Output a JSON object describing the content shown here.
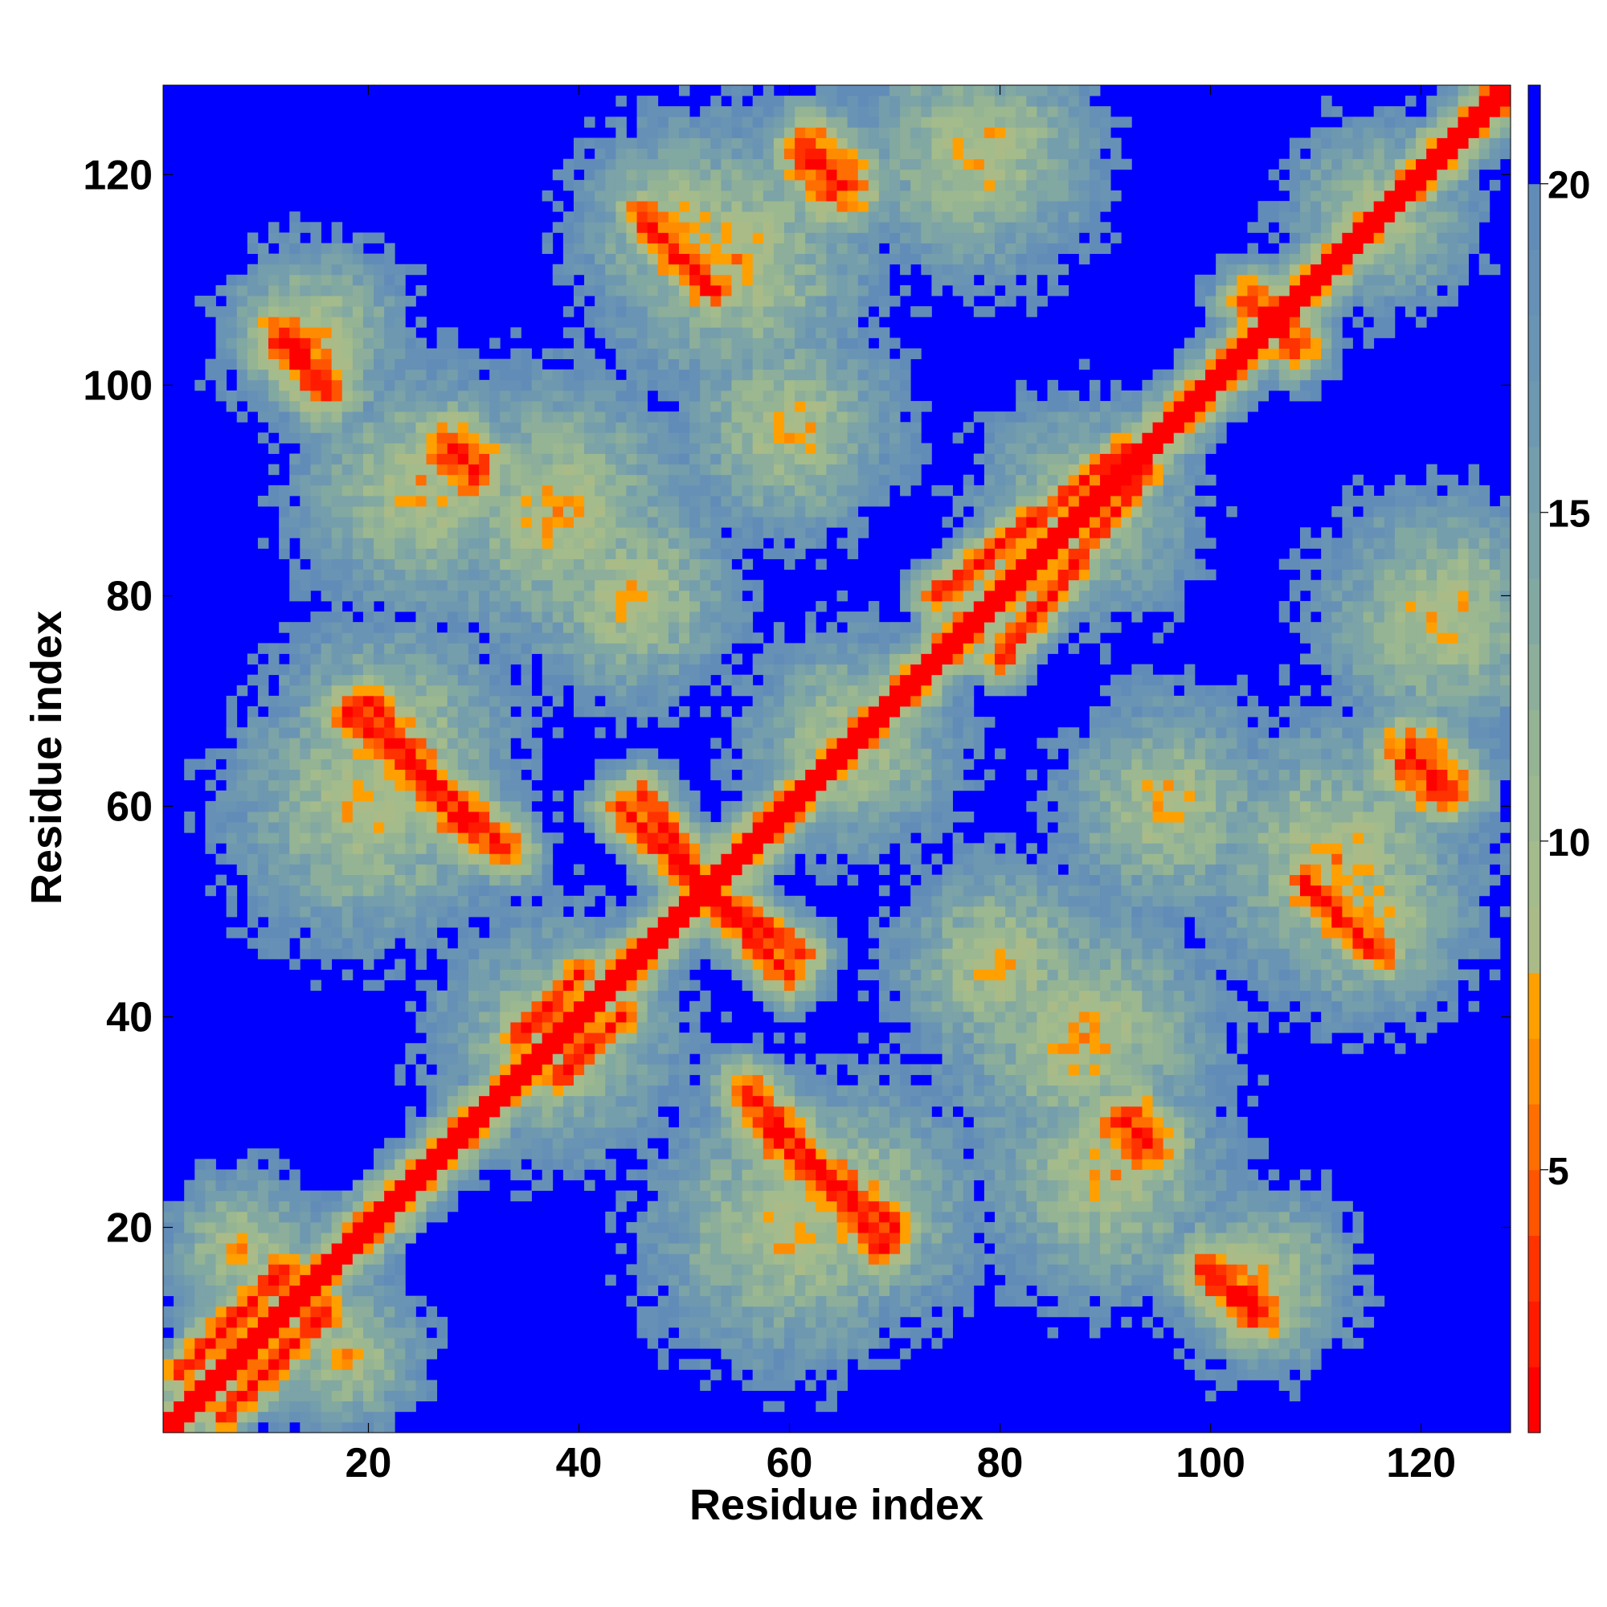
{
  "chart_data": {
    "type": "heatmap",
    "title": "",
    "xlabel": "Residue index",
    "ylabel": "Residue index",
    "n_residues": 128,
    "xlim": [
      1,
      128
    ],
    "ylim": [
      1,
      128
    ],
    "x_ticks": [
      20,
      40,
      60,
      80,
      100,
      120
    ],
    "y_ticks": [
      20,
      40,
      60,
      80,
      100,
      120
    ],
    "colorbar": {
      "range": [
        1,
        21.5
      ],
      "ticks": [
        5,
        10,
        15,
        20
      ],
      "scale": [
        {
          "max": 2,
          "color": "#ff0000"
        },
        {
          "max": 3,
          "color": "#ff1a00"
        },
        {
          "max": 4,
          "color": "#ff3300"
        },
        {
          "max": 5,
          "color": "#ff5500"
        },
        {
          "max": 6,
          "color": "#ff6e00"
        },
        {
          "max": 7,
          "color": "#ff8c00"
        },
        {
          "max": 8,
          "color": "#ffa000"
        },
        {
          "max": 9,
          "color": "#aabb88"
        },
        {
          "max": 10,
          "color": "#a4bb8c"
        },
        {
          "max": 11,
          "color": "#9cb890"
        },
        {
          "max": 12,
          "color": "#94b494"
        },
        {
          "max": 13,
          "color": "#8cae9a"
        },
        {
          "max": 14,
          "color": "#82a8a2"
        },
        {
          "max": 15,
          "color": "#7ba3a8"
        },
        {
          "max": 16,
          "color": "#749eac"
        },
        {
          "max": 17,
          "color": "#6e98b0"
        },
        {
          "max": 18,
          "color": "#6a94b4"
        },
        {
          "max": 19,
          "color": "#6690b6"
        },
        {
          "max": 20,
          "color": "#628cb8"
        },
        {
          "max": 21.5,
          "color": "#0000ff"
        }
      ]
    },
    "contact_bands": [
      {
        "i1": 1,
        "j1": 1,
        "i2": 128,
        "j2": 128,
        "w": 0.6
      },
      {
        "i1": 20,
        "j1": 70,
        "i2": 30,
        "j2": 57,
        "w": 0.7
      },
      {
        "i1": 56,
        "j1": 33,
        "i2": 69,
        "j2": 18,
        "w": 0.7
      },
      {
        "i1": 46,
        "j1": 61,
        "i2": 52,
        "j2": 52,
        "w": 0.6
      },
      {
        "i1": 52,
        "j1": 52,
        "i2": 60,
        "j2": 44,
        "w": 0.6
      },
      {
        "i1": 46,
        "j1": 116,
        "i2": 52,
        "j2": 109,
        "w": 0.6
      },
      {
        "i1": 109,
        "j1": 53,
        "i2": 116,
        "j2": 46,
        "w": 0.6
      },
      {
        "i1": 12,
        "j1": 104,
        "i2": 16,
        "j2": 100,
        "w": 0.8
      },
      {
        "i1": 100,
        "j1": 16,
        "i2": 105,
        "j2": 12,
        "w": 0.8
      },
      {
        "i1": 28,
        "j1": 94,
        "i2": 30,
        "j2": 92,
        "w": 0.9
      },
      {
        "i1": 62,
        "j1": 122,
        "i2": 64,
        "j2": 119,
        "w": 0.9
      },
      {
        "i1": 119,
        "j1": 65,
        "i2": 122,
        "j2": 62,
        "w": 0.9
      },
      {
        "i1": 92,
        "j1": 30,
        "i2": 94,
        "j2": 28,
        "w": 0.9
      },
      {
        "i1": 104,
        "j1": 108,
        "i2": 108,
        "j2": 104,
        "w": 0.7
      },
      {
        "i1": 74,
        "j1": 80,
        "i2": 92,
        "j2": 94,
        "w": 0.5
      },
      {
        "i1": 80,
        "j1": 74,
        "i2": 94,
        "j2": 92,
        "w": 0.5
      },
      {
        "i1": 34,
        "j1": 38,
        "i2": 40,
        "j2": 44,
        "w": 0.5
      },
      {
        "i1": 38,
        "j1": 34,
        "i2": 44,
        "j2": 40,
        "w": 0.5
      },
      {
        "i1": 2,
        "j1": 6,
        "i2": 12,
        "j2": 16,
        "w": 0.5
      },
      {
        "i1": 6,
        "j1": 2,
        "i2": 16,
        "j2": 12,
        "w": 0.5
      }
    ],
    "domains": [
      {
        "i": 12,
        "j": 12,
        "s": 14
      },
      {
        "i": 38,
        "j": 38,
        "s": 16
      },
      {
        "i": 66,
        "j": 66,
        "s": 14
      },
      {
        "i": 88,
        "j": 88,
        "s": 14
      },
      {
        "i": 116,
        "j": 116,
        "s": 12
      },
      {
        "i": 38,
        "j": 88,
        "s": 18
      },
      {
        "i": 88,
        "j": 38,
        "s": 18
      },
      {
        "i": 20,
        "j": 60,
        "s": 18
      },
      {
        "i": 60,
        "j": 20,
        "s": 18
      },
      {
        "i": 66,
        "j": 22,
        "s": 16
      },
      {
        "i": 22,
        "j": 66,
        "s": 16
      },
      {
        "i": 90,
        "j": 25,
        "s": 16
      },
      {
        "i": 25,
        "j": 90,
        "s": 16
      },
      {
        "i": 105,
        "j": 15,
        "s": 12
      },
      {
        "i": 15,
        "j": 105,
        "s": 12
      },
      {
        "i": 112,
        "j": 55,
        "s": 18
      },
      {
        "i": 55,
        "j": 112,
        "s": 18
      },
      {
        "i": 122,
        "j": 78,
        "s": 16
      },
      {
        "i": 78,
        "j": 122,
        "s": 16
      },
      {
        "i": 96,
        "j": 60,
        "s": 14
      },
      {
        "i": 60,
        "j": 96,
        "s": 14
      },
      {
        "i": 50,
        "j": 115,
        "s": 14
      },
      {
        "i": 115,
        "j": 50,
        "s": 14
      },
      {
        "i": 80,
        "j": 45,
        "s": 14
      },
      {
        "i": 45,
        "j": 80,
        "s": 14
      },
      {
        "i": 8,
        "j": 18,
        "s": 10
      },
      {
        "i": 18,
        "j": 8,
        "s": 10
      }
    ]
  }
}
